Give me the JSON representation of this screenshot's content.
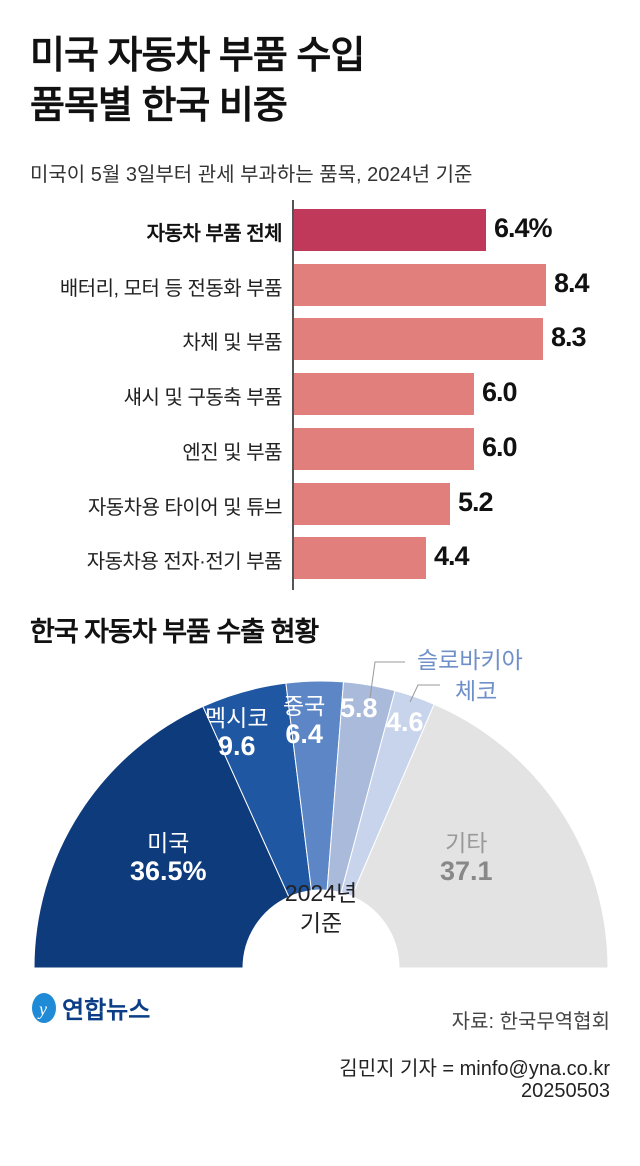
{
  "title_line1": "미국 자동차 부품 수입",
  "title_line2": "품목별 한국 비중",
  "subtitle": "미국이 5월 3일부터 관세 부과하는 품목, 2024년 기준",
  "colors": {
    "highlight_bar": "#c1395a",
    "bar": "#e07f7c",
    "usa": "#0e3b7c",
    "mexico": "#1f57a2",
    "china": "#5c86c6",
    "slovakia": "#a9badb",
    "czech": "#c8d4eb",
    "other": "#e3e3e3"
  },
  "chart_data": [
    {
      "type": "bar",
      "orientation": "horizontal",
      "categories": [
        "자동차 부품 전체",
        "배터리, 모터 등 전동화 부품",
        "차체 및 부품",
        "섀시 및 구동축 부품",
        "엔진 및 부품",
        "자동차용 타이어 및 튜브",
        "자동차용 전자·전기 부품"
      ],
      "values": [
        6.4,
        8.4,
        8.3,
        6.0,
        6.0,
        5.2,
        4.4
      ],
      "value_labels": [
        "6.4%",
        "8.4",
        "8.3",
        "6.0",
        "6.0",
        "5.2",
        "4.4"
      ],
      "unit": "%"
    },
    {
      "type": "pie",
      "style": "half-donut",
      "title": "한국 자동차 부품 수출 현황",
      "center_label": [
        "2024년",
        "기준"
      ],
      "categories": [
        "미국",
        "멕시코",
        "중국",
        "슬로바키아",
        "체코",
        "기타"
      ],
      "values": [
        36.5,
        9.6,
        6.4,
        5.8,
        4.6,
        37.1
      ],
      "value_labels": [
        "36.5%",
        "9.6",
        "6.4",
        "5.8",
        "4.6",
        "37.1"
      ],
      "unit": "%"
    }
  ],
  "source": "자료: 한국무역협회",
  "byline": "김민지 기자 = minfo@yna.co.kr",
  "date": "20250503",
  "logo_text": "연합뉴스"
}
